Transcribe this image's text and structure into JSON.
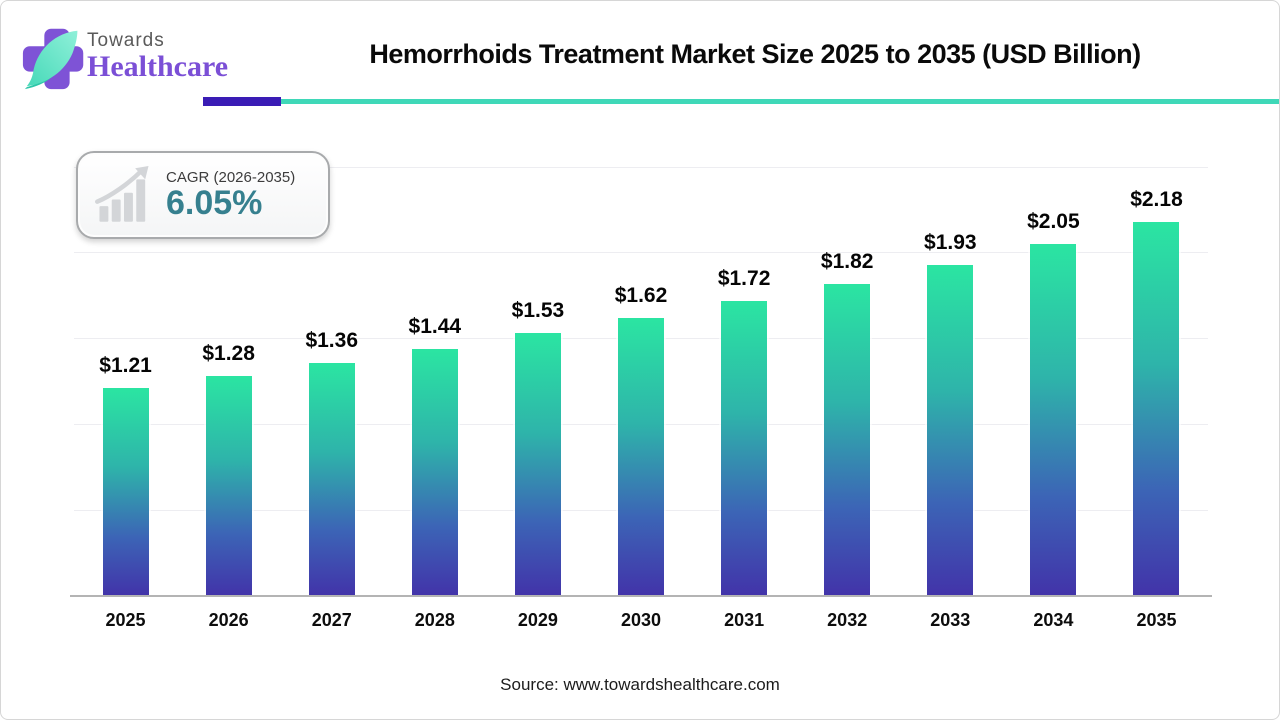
{
  "logo": {
    "line1": "Towards",
    "line2": "Healthcare"
  },
  "badge": {
    "label": "CAGR (2026-2035)",
    "value": "6.05%"
  },
  "page": {
    "source": "Source: www.towardshealthcare.com"
  },
  "colors": {
    "accent_purple": "#3a1cb5",
    "accent_teal": "#3fd8b8",
    "bar_gradient_top": "#2be5a2",
    "bar_gradient_mid_teal": "#2eb4aa",
    "bar_gradient_mid_blue": "#3c64b6",
    "bar_gradient_bottom": "#4233a9",
    "badge_value": "#36808f",
    "logo_purple": "#7b4fd6",
    "logo_leaf": "#4bdcbb"
  },
  "chart_data": {
    "type": "bar",
    "title": "Hemorrhoids Treatment Market Size 2025 to 2035 (USD Billion)",
    "categories": [
      "2025",
      "2026",
      "2027",
      "2028",
      "2029",
      "2030",
      "2031",
      "2032",
      "2033",
      "2034",
      "2035"
    ],
    "values": [
      1.21,
      1.28,
      1.36,
      1.44,
      1.53,
      1.62,
      1.72,
      1.82,
      1.93,
      2.05,
      2.18
    ],
    "bar_labels": [
      "$1.21",
      "$1.28",
      "$1.36",
      "$1.44",
      "$1.53",
      "$1.62",
      "$1.72",
      "$1.82",
      "$1.93",
      "$2.05",
      "$2.18"
    ],
    "xlabel": "",
    "ylabel": "",
    "ylim": [
      0,
      2.5
    ],
    "gridline_step": 0.5,
    "grid": true,
    "legend": "none"
  }
}
